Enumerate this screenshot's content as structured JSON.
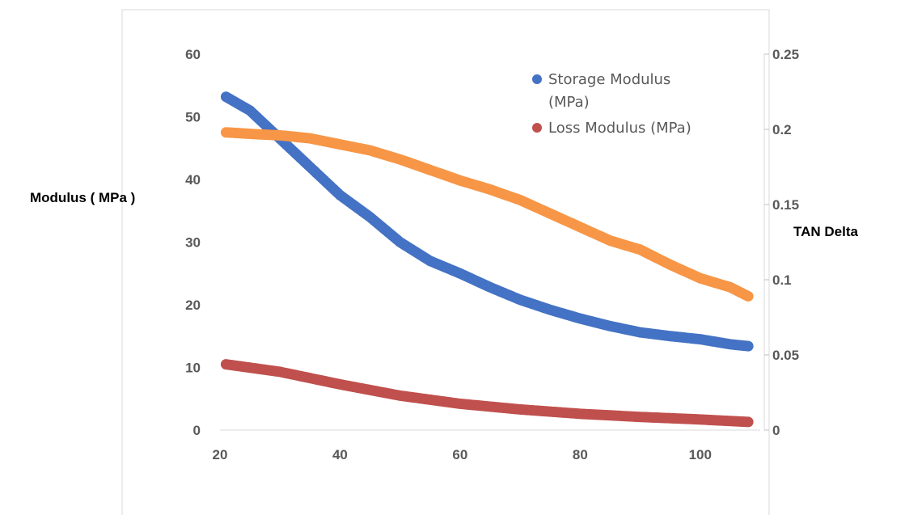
{
  "chart_data": {
    "type": "scatter",
    "title": "",
    "xlabel": "",
    "ylabel": "Modulus ( MPa )",
    "y2label": "TAN Delta",
    "xlim": [
      20,
      110
    ],
    "ylim": [
      0,
      60
    ],
    "y2lim": [
      0,
      0.25
    ],
    "xticks": [
      "20",
      "40",
      "60",
      "80",
      "100"
    ],
    "yticks": [
      "0",
      "10",
      "20",
      "30",
      "40",
      "50",
      "60"
    ],
    "y2ticks": [
      "0",
      "0.05",
      "0.1",
      "0.15",
      "0.2",
      "0.25"
    ],
    "grid": false,
    "legend_position": "top-right",
    "series": [
      {
        "name": "Storage Modulus (MPa)",
        "legend_lines": [
          "Storage Modulus",
          "(MPa)"
        ],
        "axis": "left",
        "color": "#4472C4",
        "x": [
          21,
          25,
          30,
          35,
          40,
          45,
          50,
          55,
          60,
          65,
          70,
          75,
          80,
          85,
          90,
          95,
          100,
          105,
          108
        ],
        "y": [
          53.2,
          51,
          46.5,
          42,
          37.5,
          34,
          30,
          27,
          25,
          22.8,
          20.8,
          19.2,
          17.8,
          16.6,
          15.6,
          15,
          14.5,
          13.7,
          13.4
        ]
      },
      {
        "name": "Loss Modulus (MPa)",
        "legend_lines": [
          "Loss Modulus (MPa)"
        ],
        "axis": "left",
        "color": "#C0504D",
        "x": [
          21,
          30,
          40,
          50,
          60,
          70,
          80,
          90,
          100,
          108
        ],
        "y": [
          10.5,
          9.3,
          7.3,
          5.5,
          4.2,
          3.3,
          2.6,
          2.1,
          1.7,
          1.3
        ]
      },
      {
        "name": "TAN Delta",
        "axis": "right",
        "color": "#F79646",
        "x": [
          21,
          25,
          30,
          35,
          40,
          45,
          50,
          55,
          60,
          65,
          70,
          75,
          80,
          85,
          90,
          95,
          100,
          105,
          108
        ],
        "y": [
          0.198,
          0.197,
          0.196,
          0.194,
          0.19,
          0.186,
          0.18,
          0.173,
          0.166,
          0.16,
          0.153,
          0.144,
          0.135,
          0.126,
          0.12,
          0.11,
          0.101,
          0.095,
          0.089
        ]
      }
    ]
  }
}
